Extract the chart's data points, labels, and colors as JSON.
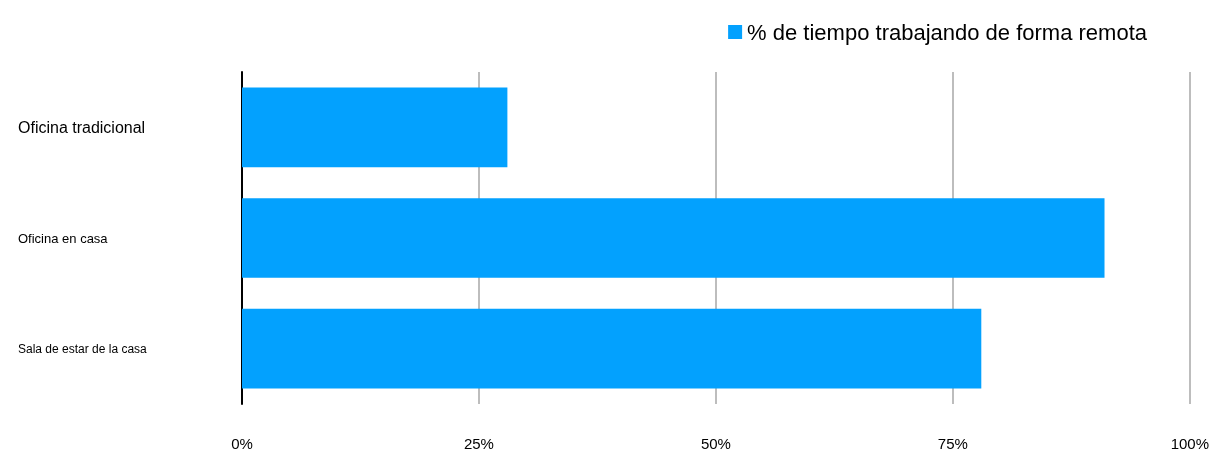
{
  "chart_data": {
    "type": "bar",
    "orientation": "horizontal",
    "categories": [
      "Oficina tradicional",
      "Oficina en casa",
      "Sala de estar de la casa"
    ],
    "series": [
      {
        "name": "% de tiempo trabajando de forma remota",
        "color": "#03a1fe",
        "values": [
          28,
          91,
          78
        ]
      }
    ],
    "xlim": [
      0,
      100
    ],
    "xticks": [
      {
        "value": 0,
        "label": "0%"
      },
      {
        "value": 25,
        "label": "25%"
      },
      {
        "value": 50,
        "label": "50%"
      },
      {
        "value": 75,
        "label": "75%"
      },
      {
        "value": 100,
        "label": "100%"
      }
    ],
    "grid": "x",
    "legend": "top right"
  }
}
